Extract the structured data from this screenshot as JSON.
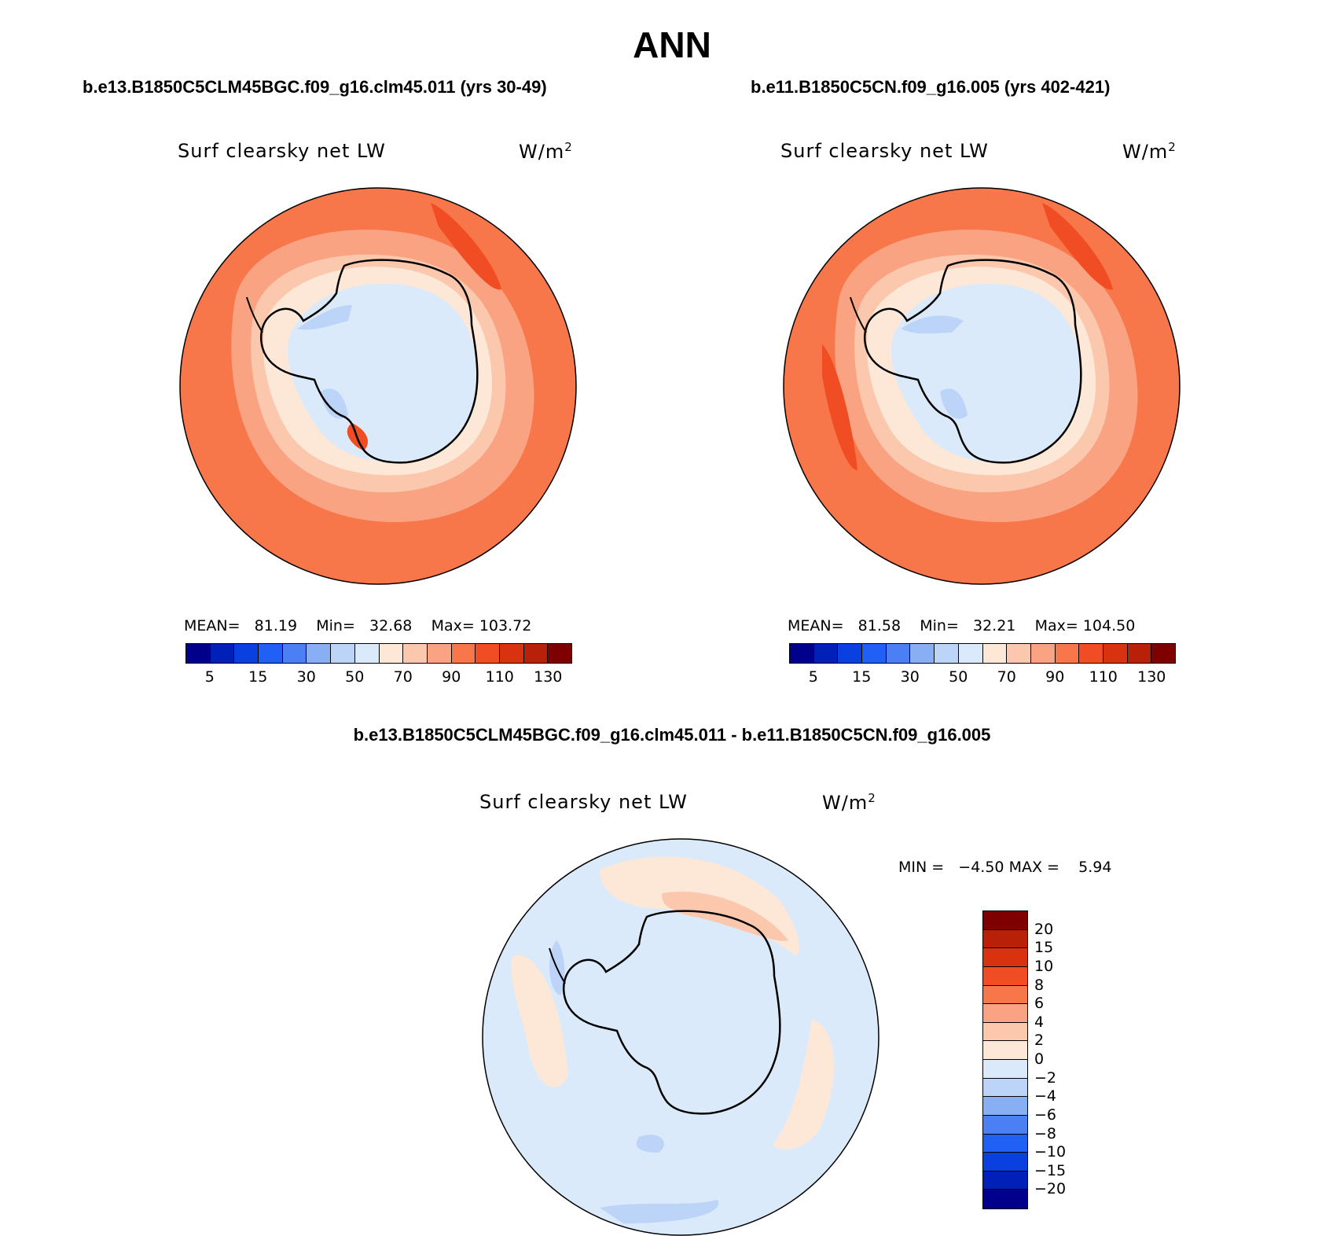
{
  "title": "ANN",
  "panels": {
    "left": {
      "case_title": "b.e13.B1850C5CLM45BGC.f09_g16.clm45.011 (yrs 30-49)",
      "variable": "Surf clearsky net LW",
      "units_base": "W/m",
      "units_exp": "2",
      "mean_label": "MEAN=",
      "mean": "81.19",
      "min_label": "Min=",
      "min": "32.68",
      "max_label": "Max=",
      "max": "103.72"
    },
    "right": {
      "case_title": "b.e11.B1850C5CN.f09_g16.005 (yrs 402-421)",
      "variable": "Surf clearsky net LW",
      "units_base": "W/m",
      "units_exp": "2",
      "mean_label": "MEAN=",
      "mean": "81.58",
      "min_label": "Min=",
      "min": "32.21",
      "max_label": "Max=",
      "max": "104.50"
    },
    "diff": {
      "case_title": "b.e13.B1850C5CLM45BGC.f09_g16.clm45.011 - b.e11.B1850C5CN.f09_g16.005",
      "variable": "Surf clearsky net LW",
      "units_base": "W/m",
      "units_exp": "2",
      "min_label": "MIN =",
      "min": "−4.50",
      "max_label": "MAX =",
      "max": "5.94"
    }
  },
  "colorbar_field": {
    "colors": [
      "#00008b",
      "#0020b8",
      "#0a3fe0",
      "#2060f4",
      "#4a80f4",
      "#88aef4",
      "#bcd4f8",
      "#dbeafa",
      "#fde8d8",
      "#fbc8ae",
      "#f9a383",
      "#f7764a",
      "#f04d24",
      "#d83210",
      "#b82008",
      "#7f0000"
    ],
    "tick_labels": [
      "5",
      "15",
      "30",
      "50",
      "70",
      "90",
      "110",
      "130"
    ]
  },
  "colorbar_diff": {
    "colors_top_to_bottom": [
      "#7f0000",
      "#b82008",
      "#d83210",
      "#f04d24",
      "#f7764a",
      "#f9a383",
      "#fbc8ae",
      "#fde8d8",
      "#dbeafa",
      "#bcd4f8",
      "#88aef4",
      "#4a80f4",
      "#2060f4",
      "#0a3fe0",
      "#0020b8",
      "#00008b"
    ],
    "tick_labels_top_to_bottom": [
      "20",
      "15",
      "10",
      "8",
      "6",
      "4",
      "2",
      "0",
      "−2",
      "−4",
      "−6",
      "−8",
      "−10",
      "−15",
      "−20"
    ]
  },
  "map_colors": {
    "ocean_outer": "#f7764a",
    "ocean_mid": "#f9a383",
    "coast_band": "#fbc8ae",
    "ice_edge": "#fde8d8",
    "interior": "#dbeafa",
    "interior_low": "#bcd4f8",
    "hot_spot": "#f04d24",
    "diff_base": "#dbeafa",
    "diff_pos": "#fde8d8",
    "diff_pos2": "#fbc8ae",
    "diff_neg": "#bcd4f8"
  }
}
